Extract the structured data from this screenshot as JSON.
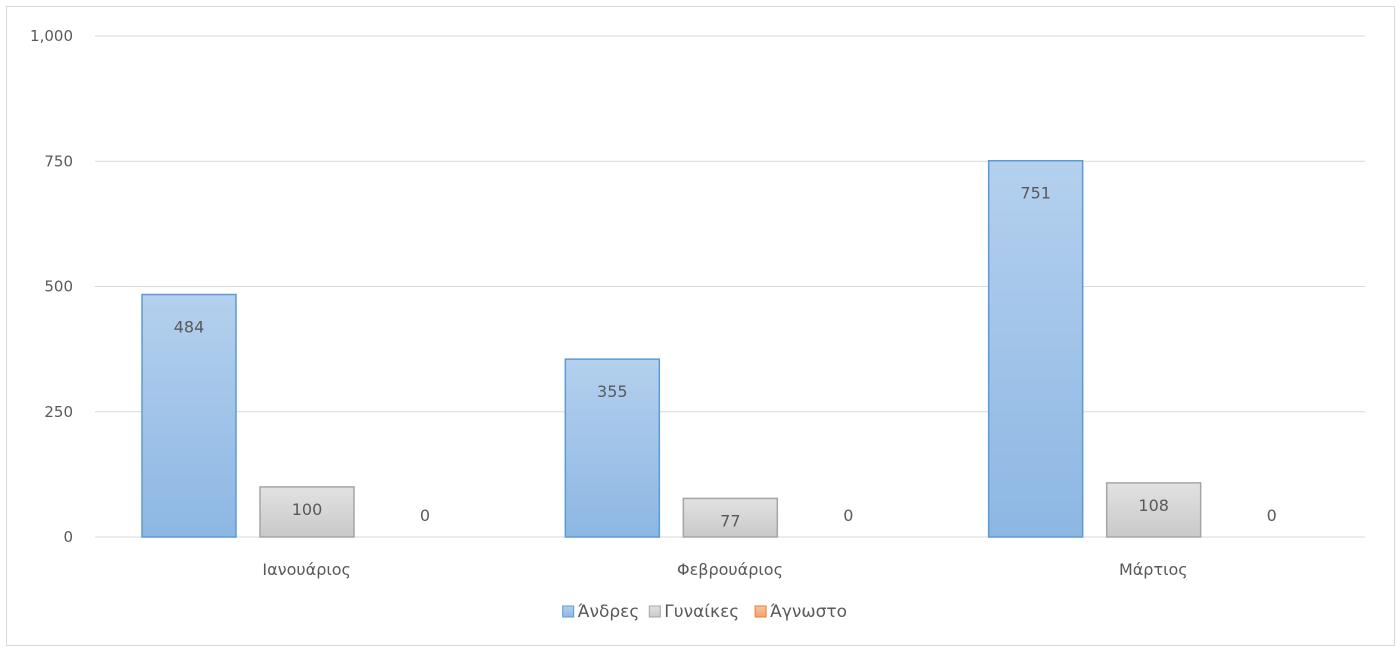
{
  "chart_data": {
    "type": "bar",
    "title": "",
    "xlabel": "",
    "ylabel": "",
    "categories": [
      "Ιανουάριος",
      "Φεβρουάριος",
      "Μάρτιος"
    ],
    "series": [
      {
        "name": "Άνδρες",
        "values": [
          484,
          355,
          751
        ],
        "color": "#9dc3e6",
        "border": "#5b9bd5"
      },
      {
        "name": "Γυναίκες",
        "values": [
          100,
          77,
          108
        ],
        "color": "#d9d9d9",
        "border": "#a5a5a5"
      },
      {
        "name": "Άγνωστο",
        "values": [
          0,
          0,
          0
        ],
        "color": "#f4b183",
        "border": "#ed7d31"
      }
    ],
    "ylim": [
      0,
      1000
    ],
    "yticks": [
      0,
      250,
      500,
      750,
      1000
    ],
    "ytick_labels": [
      "0",
      "250",
      "500",
      "750",
      "1,000"
    ],
    "grid": true,
    "legend_position": "bottom",
    "data_labels": true
  }
}
